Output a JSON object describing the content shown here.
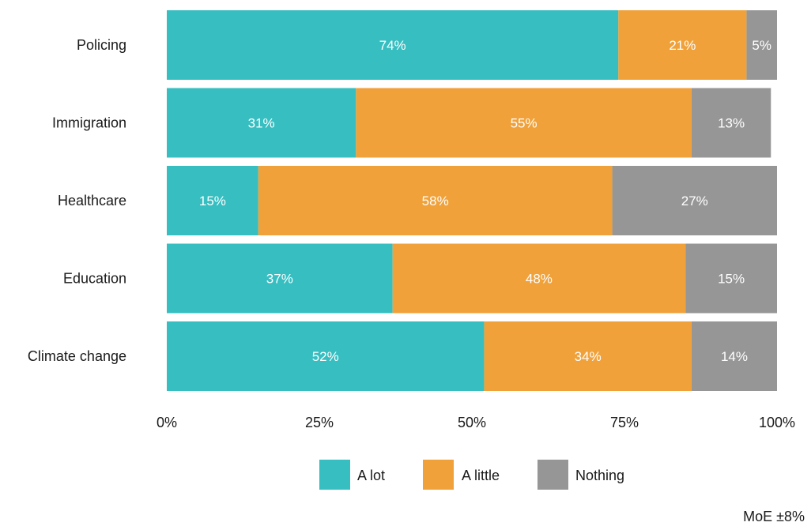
{
  "chart_data": {
    "type": "bar",
    "orientation": "horizontal",
    "stacked": true,
    "categories": [
      "Policing",
      "Immigration",
      "Healthcare",
      "Education",
      "Climate change"
    ],
    "series": [
      {
        "name": "A lot",
        "color": "#36bec1",
        "values": [
          74,
          31,
          15,
          37,
          52
        ]
      },
      {
        "name": "A little",
        "color": "#f0a13a",
        "values": [
          21,
          55,
          58,
          48,
          34
        ]
      },
      {
        "name": "Nothing",
        "color": "#969696",
        "values": [
          5,
          13,
          27,
          15,
          14
        ]
      }
    ],
    "value_labels": [
      [
        "74%",
        "21%",
        "5%"
      ],
      [
        "31%",
        "55%",
        "13%"
      ],
      [
        "15%",
        "58%",
        "27%"
      ],
      [
        "37%",
        "48%",
        "15%"
      ],
      [
        "52%",
        "34%",
        "14%"
      ]
    ],
    "xlim": [
      0,
      100
    ],
    "xticks": [
      0,
      25,
      50,
      75,
      100
    ],
    "xtick_labels": [
      "0%",
      "25%",
      "50%",
      "75%",
      "100%"
    ],
    "grid": false,
    "legend_position": "bottom-center",
    "note": "MoE ±8%"
  }
}
